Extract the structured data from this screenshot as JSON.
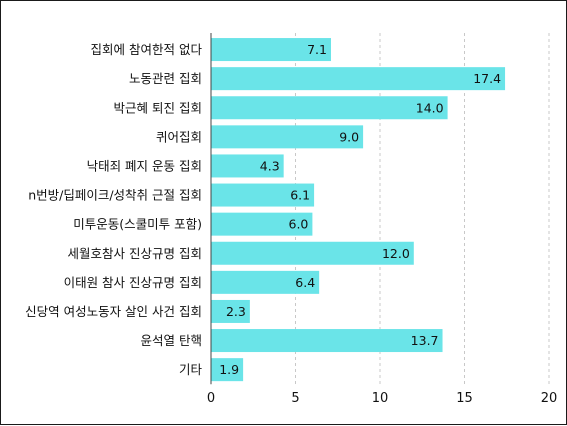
{
  "chart_data": {
    "type": "bar",
    "orientation": "horizontal",
    "categories": [
      "집회에 참여한적 없다",
      "노동관련 집회",
      "박근혜 퇴진 집회",
      "퀴어집회",
      "낙태죄 폐지 운동 집회",
      "n번방/딥페이크/성착취 근절 집회",
      "미투운동(스쿨미투 포함)",
      "세월호참사 진상규명 집회",
      "이태원 참사 진상규명 집회",
      "신당역 여성노동자 살인 사건 집회",
      "윤석열 탄핵",
      "기타"
    ],
    "values": [
      7.1,
      17.4,
      14.0,
      9.0,
      4.3,
      6.1,
      6.0,
      12.0,
      6.4,
      2.3,
      13.7,
      1.9
    ],
    "value_labels": [
      "7.1",
      "17.4",
      "14.0",
      "9.0",
      "4.3",
      "6.1",
      "6.0",
      "12.0",
      "6.4",
      "2.3",
      "13.7",
      "1.9"
    ],
    "xlim": [
      0,
      20
    ],
    "xticks": [
      "0",
      "5",
      "10",
      "15",
      "20"
    ],
    "grid": "vertical dashed",
    "bar_color": "#6ae4e8",
    "grid_color": "#c8c8c8",
    "title": "",
    "xlabel": "",
    "ylabel": ""
  }
}
